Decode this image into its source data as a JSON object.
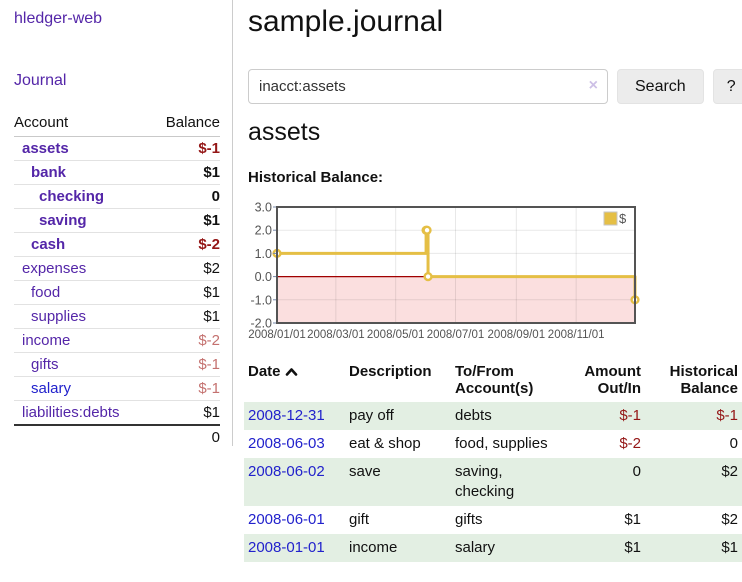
{
  "colors": {
    "link_purple": "#5426a8",
    "link_blue": "#2222cc",
    "negative_strong": "#941616",
    "negative_soft": "#c4716f",
    "row_stripe_green": "#e3efe3",
    "series_gold": "#e5bf45",
    "chart_negative_region": "#fbdfdf",
    "chart_zero_line": "#a00000",
    "chart_border": "#545454"
  },
  "sidebar": {
    "brand": "hledger-web",
    "nav_journal": "Journal",
    "table": {
      "account_header": "Account",
      "balance_header": "Balance",
      "accounts": [
        {
          "name": "assets",
          "level": 1,
          "bold": true,
          "balance": "$-1",
          "neg": "strong",
          "link": "purple"
        },
        {
          "name": "bank",
          "level": 2,
          "bold": true,
          "balance": "$1",
          "neg": "none",
          "link": "purple"
        },
        {
          "name": "checking",
          "level": 3,
          "bold": true,
          "balance": "0",
          "neg": "none",
          "link": "purple"
        },
        {
          "name": "saving",
          "level": 3,
          "bold": true,
          "balance": "$1",
          "neg": "none",
          "link": "purple"
        },
        {
          "name": "cash",
          "level": 2,
          "bold": true,
          "balance": "$-2",
          "neg": "strong",
          "link": "purple"
        },
        {
          "name": "expenses",
          "level": 1,
          "bold": false,
          "balance": "$2",
          "neg": "none",
          "link": "purple"
        },
        {
          "name": "food",
          "level": 2,
          "bold": false,
          "balance": "$1",
          "neg": "none",
          "link": "purple"
        },
        {
          "name": "supplies",
          "level": 2,
          "bold": false,
          "balance": "$1",
          "neg": "none",
          "link": "purple"
        },
        {
          "name": "income",
          "level": 1,
          "bold": false,
          "balance": "$-2",
          "neg": "soft",
          "link": "purple"
        },
        {
          "name": "gifts",
          "level": 2,
          "bold": false,
          "balance": "$-1",
          "neg": "soft",
          "link": "purple"
        },
        {
          "name": "salary",
          "level": 2,
          "bold": false,
          "balance": "$-1",
          "neg": "soft",
          "link": "blue"
        },
        {
          "name": "liabilities:debts",
          "level": 1,
          "bold": false,
          "balance": "$1",
          "neg": "none",
          "link": "purple"
        }
      ],
      "total": "0"
    }
  },
  "header": {
    "title": "sample.journal"
  },
  "search": {
    "value": "inacct:assets",
    "clear_icon": "×",
    "button_label": "Search",
    "help_label": "?"
  },
  "account_page": {
    "title": "assets",
    "chart_label": "Historical Balance:"
  },
  "chart_data": {
    "type": "line",
    "step": true,
    "title": "Historical Balance",
    "xlabel": "",
    "ylabel": "",
    "xlim": [
      "2008-01-01",
      "2008-12-31"
    ],
    "ylim": [
      -2,
      3
    ],
    "grid": true,
    "legend_position": "top-right",
    "series": [
      {
        "name": "$",
        "color": "#e5bf45",
        "points": [
          [
            "2008-01-01",
            1
          ],
          [
            "2008-06-01",
            2
          ],
          [
            "2008-06-02",
            2
          ],
          [
            "2008-06-03",
            0
          ],
          [
            "2008-12-31",
            -1
          ]
        ]
      }
    ],
    "y_ticks": [
      {
        "label": "3.0",
        "value": 3
      },
      {
        "label": "2.0",
        "value": 2
      },
      {
        "label": "1.0",
        "value": 1
      },
      {
        "label": "0.0",
        "value": 0
      },
      {
        "label": "-1.0",
        "value": -1
      },
      {
        "label": "-2.0",
        "value": -2
      }
    ],
    "x_ticks": [
      {
        "label": "2008/01/01",
        "date": "2008-01-01"
      },
      {
        "label": "2008/03/01",
        "date": "2008-03-01"
      },
      {
        "label": "2008/05/01",
        "date": "2008-05-01"
      },
      {
        "label": "2008/07/01",
        "date": "2008-07-01"
      },
      {
        "label": "2008/09/01",
        "date": "2008-09-01"
      },
      {
        "label": "2008/11/01",
        "date": "2008-11-01"
      }
    ]
  },
  "register": {
    "headers": {
      "date": "Date",
      "description": "Description",
      "tofrom": "To/From\nAccount(s)",
      "amount": "Amount\nOut/In",
      "balance": "Historical\nBalance"
    },
    "rows": [
      {
        "date": "2008-12-31",
        "description": "pay off",
        "accounts": "debts",
        "amount": "$-1",
        "balance": "$-1",
        "amount_neg": true,
        "balance_neg": true
      },
      {
        "date": "2008-06-03",
        "description": "eat & shop",
        "accounts": "food, supplies",
        "amount": "$-2",
        "balance": "0",
        "amount_neg": true,
        "balance_neg": false
      },
      {
        "date": "2008-06-02",
        "description": "save",
        "accounts": "saving, checking",
        "amount": "0",
        "balance": "$2",
        "amount_neg": false,
        "balance_neg": false
      },
      {
        "date": "2008-06-01",
        "description": "gift",
        "accounts": "gifts",
        "amount": "$1",
        "balance": "$2",
        "amount_neg": false,
        "balance_neg": false
      },
      {
        "date": "2008-01-01",
        "description": "income",
        "accounts": "salary",
        "amount": "$1",
        "balance": "$1",
        "amount_neg": false,
        "balance_neg": false
      }
    ]
  }
}
